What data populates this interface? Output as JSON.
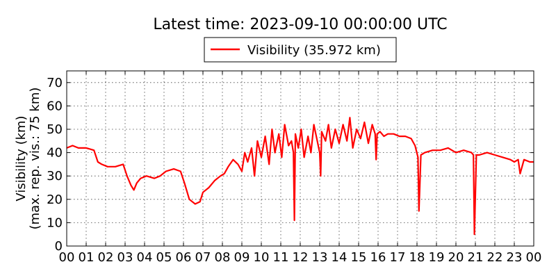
{
  "chart_data": {
    "type": "line",
    "title": "Latest time: 2023-09-10 00:00:00 UTC",
    "xlabel": "",
    "ylabel_line1": "Visibility (km)",
    "ylabel_line2": "(max. rep. vis.: 75 km)",
    "ylim": [
      0,
      75
    ],
    "xlim": [
      0,
      24
    ],
    "yticks": [
      0,
      10,
      20,
      30,
      40,
      50,
      60,
      70
    ],
    "xtick_labels": [
      "00",
      "01",
      "02",
      "03",
      "04",
      "05",
      "06",
      "07",
      "08",
      "09",
      "10",
      "11",
      "12",
      "13",
      "14",
      "15",
      "16",
      "17",
      "18",
      "19",
      "20",
      "21",
      "22",
      "23",
      "00"
    ],
    "grid": true,
    "legend_position": "top-center",
    "series": [
      {
        "name": "Visibility (35.972 km)",
        "color": "#ff0000",
        "x_unit": "hours",
        "x": [
          0.0,
          0.3,
          0.6,
          1.0,
          1.4,
          1.6,
          1.8,
          2.1,
          2.5,
          2.9,
          3.1,
          3.3,
          3.45,
          3.6,
          3.8,
          4.1,
          4.5,
          4.8,
          5.1,
          5.5,
          5.85,
          6.05,
          6.3,
          6.6,
          6.85,
          7.0,
          7.3,
          7.6,
          7.9,
          8.1,
          8.3,
          8.55,
          8.8,
          9.0,
          9.15,
          9.3,
          9.5,
          9.65,
          9.8,
          10.0,
          10.2,
          10.4,
          10.55,
          10.7,
          10.9,
          11.05,
          11.2,
          11.4,
          11.55,
          11.65,
          11.7,
          11.75,
          11.9,
          12.05,
          12.2,
          12.4,
          12.55,
          12.7,
          12.9,
          13.0,
          13.05,
          13.1,
          13.3,
          13.45,
          13.6,
          13.8,
          14.0,
          14.2,
          14.4,
          14.55,
          14.7,
          14.9,
          15.1,
          15.3,
          15.5,
          15.7,
          15.85,
          15.9,
          15.95,
          16.1,
          16.3,
          16.5,
          16.8,
          17.1,
          17.4,
          17.7,
          17.9,
          18.05,
          18.1,
          18.2,
          18.4,
          18.8,
          19.2,
          19.6,
          20.0,
          20.4,
          20.8,
          20.9,
          20.95,
          21.05,
          21.2,
          21.6,
          22.0,
          22.4,
          22.8,
          23.0,
          23.2,
          23.3,
          23.5,
          23.8,
          24.0
        ],
        "y": [
          42,
          43,
          42,
          42,
          41,
          36,
          35,
          34,
          34,
          35,
          30,
          26,
          24,
          27,
          29,
          30,
          29,
          30,
          32,
          33,
          32,
          27,
          20,
          18,
          19,
          23,
          25,
          28,
          30,
          31,
          34,
          37,
          35,
          32,
          40,
          36,
          42,
          30,
          45,
          38,
          47,
          35,
          50,
          40,
          48,
          38,
          52,
          43,
          45,
          40,
          11,
          48,
          42,
          50,
          38,
          47,
          40,
          52,
          44,
          40,
          30,
          49,
          45,
          52,
          42,
          50,
          44,
          52,
          45,
          55,
          42,
          50,
          46,
          53,
          44,
          52,
          48,
          37,
          48,
          49,
          47,
          48,
          48,
          47,
          47,
          46,
          43,
          38,
          15,
          39,
          40,
          41,
          41,
          42,
          40,
          41,
          40,
          39,
          5,
          39,
          39,
          40,
          39,
          38,
          37,
          36,
          37,
          31,
          37,
          36,
          36
        ]
      }
    ]
  }
}
